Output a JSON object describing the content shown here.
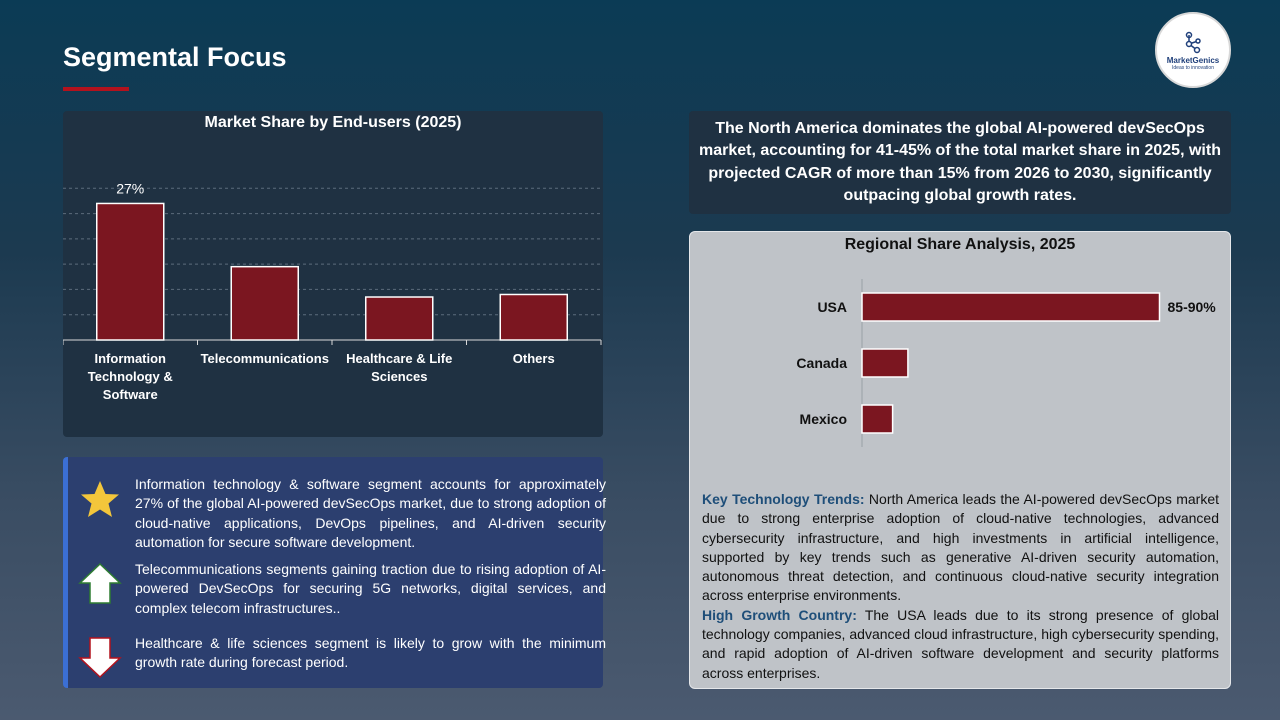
{
  "page": {
    "title": "Segmental Focus",
    "logo": {
      "name": "MarketGenics",
      "tagline": "Ideas to innovation"
    }
  },
  "chart_data": [
    {
      "type": "bar",
      "title": "Market Share by End-users (2025)",
      "categories": [
        "Information Technology & Software",
        "Telecommunications",
        "Healthcare & Life Sciences",
        "Others"
      ],
      "values": [
        27,
        14.5,
        8.5,
        9
      ],
      "data_labels": [
        "27%",
        "",
        "",
        ""
      ],
      "ylim": [
        0,
        35
      ],
      "grid": true,
      "color": "#7b1620"
    },
    {
      "type": "bar",
      "orientation": "horizontal",
      "title": "Regional Share Analysis, 2025",
      "categories": [
        "USA",
        "Canada",
        "Mexico"
      ],
      "values": [
        87.5,
        13.5,
        9
      ],
      "data_labels": [
        "85-90%",
        "",
        ""
      ],
      "xlim": [
        0,
        100
      ],
      "color": "#7b1620"
    }
  ],
  "insights": [
    {
      "icon": "star-icon",
      "text": "Information technology & software segment accounts for approximately 27% of the global AI-powered devSecOps market, due to strong adoption of cloud-native applications, DevOps pipelines, and AI-driven security automation for secure software development."
    },
    {
      "icon": "arrow-up-icon",
      "text": "Telecommunications segments gaining traction due to rising adoption of AI-powered DevSecOps for securing 5G networks, digital services, and complex telecom infrastructures.."
    },
    {
      "icon": "arrow-down-icon",
      "text": "Healthcare & life sciences segment is likely to grow with the minimum growth rate during forecast period."
    }
  ],
  "summary": "The North America dominates the global AI-powered devSecOps market, accounting for 41-45% of the total market share in 2025, with projected CAGR of more than 15% from 2026 to 2030, significantly outpacing global growth rates.",
  "region_notes": {
    "trends_label": "Key Technology Trends:",
    "trends_text": " North America leads the AI-powered devSecOps market due to strong enterprise adoption of cloud-native technologies, advanced cybersecurity infrastructure, and high investments in artificial intelligence, supported by key trends such as generative AI-driven security automation, autonomous threat detection, and continuous cloud-native security integration across enterprise environments.",
    "growth_label": "High Growth Country:",
    "growth_text": " The USA leads due to its strong presence of global technology companies, advanced cloud infrastructure, high cybersecurity spending, and rapid adoption of AI-driven software development and security platforms across enterprises."
  },
  "colors": {
    "accent_red": "#b3121d",
    "bar": "#7b1620",
    "star": "#f3c63b",
    "insights_bg": "#2c3f6f",
    "label_blue": "#1e4e79"
  }
}
